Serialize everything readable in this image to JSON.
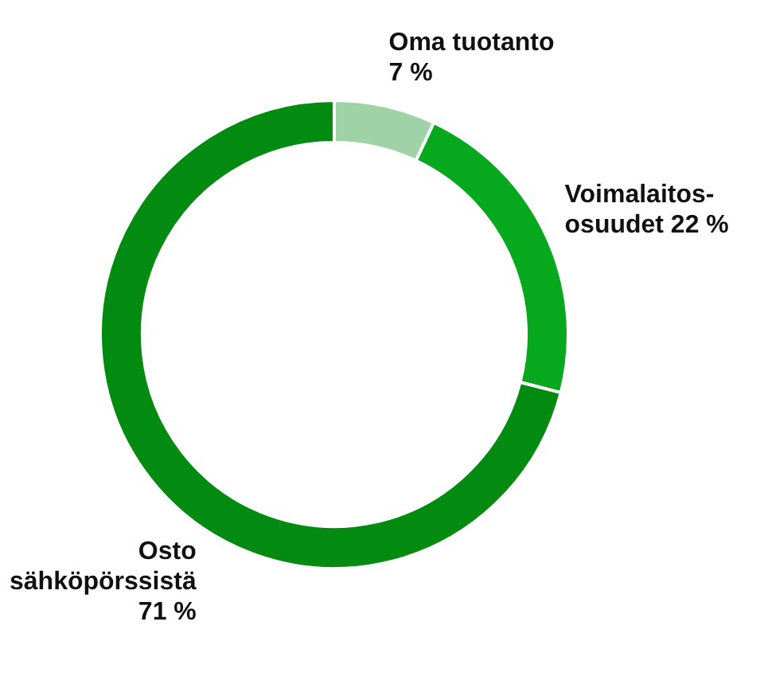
{
  "chart_data": {
    "type": "donut",
    "categories": [
      "Oma tuotanto",
      "Voimalaitos-osuudet",
      "Osto sähköpörssistä"
    ],
    "values": [
      7,
      22,
      71
    ],
    "colors": [
      "#a0d2a8",
      "#06a81e",
      "#038a10"
    ],
    "value_labels": [
      "7 %",
      "22 %",
      "71 %"
    ]
  }
}
